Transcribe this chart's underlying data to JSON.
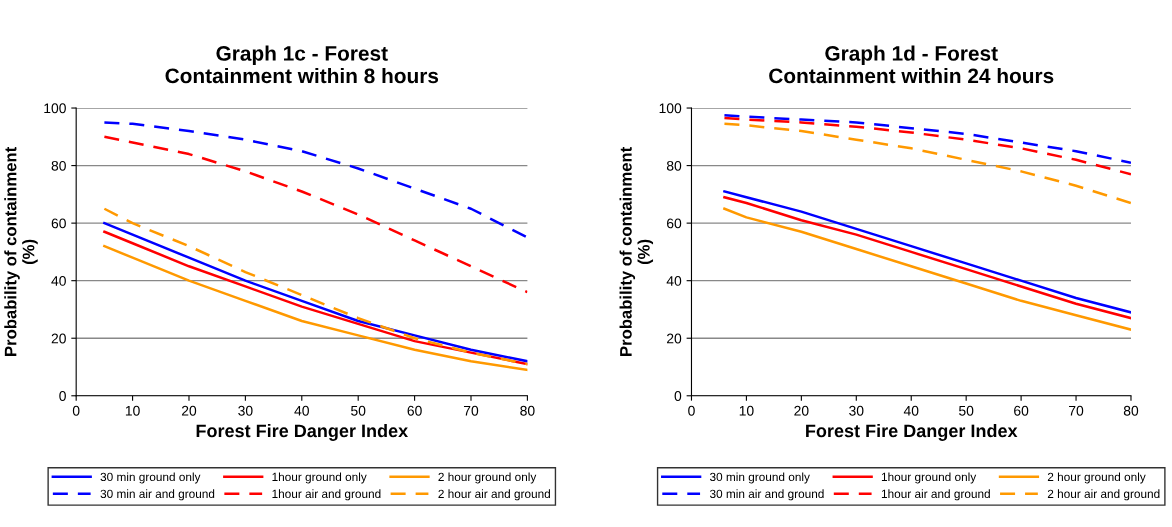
{
  "chart_data": [
    {
      "type": "line",
      "title": "Graph 1c - Forest\nContainment within 8 hours",
      "xlabel": "Forest Fire Danger Index",
      "ylabel": "Probability of containment\n(%)",
      "x": [
        5,
        10,
        20,
        30,
        40,
        50,
        60,
        70,
        80
      ],
      "xlim": [
        0,
        80
      ],
      "xticks": [
        0,
        10,
        20,
        30,
        40,
        50,
        60,
        70,
        80
      ],
      "ylim": [
        0,
        100
      ],
      "yticks": [
        0,
        20,
        40,
        60,
        80,
        100
      ],
      "grid": "y",
      "legend": "bottom",
      "marker": "none",
      "series": [
        {
          "name": "30 min ground only",
          "color": "#0000ff",
          "line_style": "solid",
          "values": [
            60,
            56,
            48,
            40,
            33,
            26,
            21,
            16,
            12
          ]
        },
        {
          "name": "30 min air and ground",
          "color": "#0000ff",
          "line_style": "dashed",
          "values": [
            95,
            94.5,
            92,
            89,
            85,
            79,
            72,
            65,
            55
          ]
        },
        {
          "name": "1hour ground only",
          "color": "#ff0000",
          "line_style": "solid",
          "values": [
            57,
            53,
            45,
            38,
            31,
            25,
            19,
            15,
            11
          ]
        },
        {
          "name": "1hour air and ground",
          "color": "#ff0000",
          "line_style": "dashed",
          "values": [
            90,
            88,
            84,
            78,
            71,
            63,
            54,
            45,
            36
          ]
        },
        {
          "name": "2 hour ground only",
          "color": "#ff9900",
          "line_style": "solid",
          "values": [
            52,
            48,
            40,
            33,
            26,
            21,
            16,
            12,
            9
          ]
        },
        {
          "name": "2 hour air and ground",
          "color": "#ff9900",
          "line_style": "dashed",
          "values": [
            65,
            60,
            52,
            43,
            35,
            27,
            20,
            15,
            11
          ]
        }
      ]
    },
    {
      "type": "line",
      "title": "Graph 1d - Forest\nContainment within 24 hours",
      "xlabel": "Forest Fire Danger Index",
      "ylabel": "Probability of containment\n(%)",
      "x": [
        6,
        10,
        20,
        30,
        40,
        50,
        60,
        70,
        80
      ],
      "xlim": [
        0,
        80
      ],
      "xticks": [
        0,
        10,
        20,
        30,
        40,
        50,
        60,
        70,
        80
      ],
      "ylim": [
        0,
        100
      ],
      "yticks": [
        0,
        20,
        40,
        60,
        80,
        100
      ],
      "grid": "y",
      "legend": "bottom",
      "marker": "none",
      "series": [
        {
          "name": "30 min ground only",
          "color": "#0000ff",
          "line_style": "solid",
          "values": [
            71,
            69,
            64,
            58,
            52,
            46,
            40,
            34,
            29
          ]
        },
        {
          "name": "30 min air and ground",
          "color": "#0000ff",
          "line_style": "dashed",
          "values": [
            97.5,
            97,
            96,
            95,
            93,
            91,
            88,
            85,
            81
          ]
        },
        {
          "name": "1hour ground only",
          "color": "#ff0000",
          "line_style": "solid",
          "values": [
            69,
            67,
            61,
            56,
            50,
            44,
            38,
            32,
            27
          ]
        },
        {
          "name": "1hour air and ground",
          "color": "#ff0000",
          "line_style": "dashed",
          "values": [
            96.5,
            96,
            95,
            93.5,
            91.5,
            89,
            86,
            82,
            77
          ]
        },
        {
          "name": "2 hour ground only",
          "color": "#ff9900",
          "line_style": "solid",
          "values": [
            65,
            62,
            57,
            51,
            45,
            39,
            33,
            28,
            23
          ]
        },
        {
          "name": "2 hour air and ground",
          "color": "#ff9900",
          "line_style": "dashed",
          "values": [
            94.5,
            94,
            92,
            89,
            86,
            82,
            78,
            73,
            67
          ]
        }
      ]
    }
  ]
}
